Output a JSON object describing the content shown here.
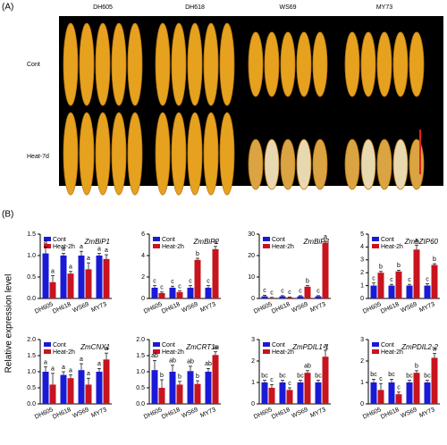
{
  "figure": {
    "label_a": "(A)",
    "label_b": "(B)",
    "y_axis_label": "Relative expression level"
  },
  "panel_a": {
    "columns": [
      "DH605",
      "DH618",
      "WS69",
      "MY73"
    ],
    "rows": [
      "Cont",
      "Heat-7d"
    ]
  },
  "chart_data": [
    {
      "type": "bar",
      "title": "ZmBiP1",
      "categories": [
        "DH605",
        "DH618",
        "WS69",
        "MY73"
      ],
      "ylim": [
        0,
        1.5
      ],
      "yticks": [
        {
          "value": 0,
          "label": "0.0"
        },
        0.5,
        {
          "value": 1,
          "label": "1.0"
        },
        1.5
      ],
      "series": [
        {
          "name": "Cont",
          "color": "#1a1ad6",
          "values": [
            1.05,
            1.0,
            1.0,
            1.0
          ],
          "errors": [
            0.15,
            0.05,
            0.1,
            0.05
          ],
          "annotations": [
            "a",
            "a",
            "a",
            "a"
          ]
        },
        {
          "name": "Heat-2h",
          "color": "#c8141e",
          "values": [
            0.38,
            0.58,
            0.68,
            0.92
          ],
          "errors": [
            0.15,
            0.05,
            0.15,
            0.1
          ],
          "annotations": [
            "a",
            "a",
            "a",
            "a"
          ]
        }
      ]
    },
    {
      "type": "bar",
      "title": "ZmBiP2",
      "categories": [
        "DH605",
        "DH618",
        "WS69",
        "MY73"
      ],
      "ylim": [
        0,
        6
      ],
      "yticks": [
        0,
        2,
        4,
        6
      ],
      "series": [
        {
          "name": "Cont",
          "color": "#1a1ad6",
          "values": [
            1.0,
            1.0,
            1.0,
            1.0
          ],
          "errors": [
            0.2,
            0.15,
            0.2,
            0.2
          ],
          "annotations": [
            "c",
            "c",
            "c",
            "c"
          ]
        },
        {
          "name": "Heat-2h",
          "color": "#c8141e",
          "values": [
            0.5,
            0.6,
            3.6,
            4.6
          ],
          "errors": [
            0.1,
            0.1,
            0.15,
            0.25
          ],
          "annotations": [
            "c",
            "c",
            "b",
            "a"
          ]
        }
      ]
    },
    {
      "type": "bar",
      "title": "ZmBiP3",
      "categories": [
        "DH605",
        "DH618",
        "WS69",
        "MY73"
      ],
      "ylim": [
        0,
        30
      ],
      "yticks": [
        0,
        10,
        20,
        30
      ],
      "series": [
        {
          "name": "Cont",
          "color": "#1a1ad6",
          "values": [
            1.0,
            1.0,
            1.0,
            1.0
          ],
          "errors": [
            0.5,
            0.3,
            0.3,
            0.3
          ],
          "annotations": [
            "c",
            "c",
            "c",
            "c"
          ]
        },
        {
          "name": "Heat-2h",
          "color": "#c8141e",
          "values": [
            0.3,
            0.5,
            5.5,
            26
          ],
          "errors": [
            0.2,
            0.2,
            0.5,
            0.6
          ],
          "annotations": [
            "c",
            "c",
            "b",
            "a"
          ]
        }
      ]
    },
    {
      "type": "bar",
      "title": "ZmbZIP60",
      "categories": [
        "DH605",
        "DH618",
        "WS69",
        "MY73"
      ],
      "ylim": [
        0,
        5
      ],
      "yticks": [
        0,
        1,
        2,
        3,
        4,
        5
      ],
      "series": [
        {
          "name": "Cont",
          "color": "#1a1ad6",
          "values": [
            1.0,
            1.0,
            1.0,
            1.0
          ],
          "errors": [
            0.2,
            0.1,
            0.1,
            0.15
          ],
          "annotations": [
            "c",
            "c",
            "c",
            "c"
          ]
        },
        {
          "name": "Heat-2h",
          "color": "#c8141e",
          "values": [
            2.0,
            2.1,
            3.8,
            2.6
          ],
          "errors": [
            0.1,
            0.1,
            0.35,
            0.1
          ],
          "annotations": [
            "b",
            "b",
            "a",
            "b"
          ]
        }
      ]
    },
    {
      "type": "bar",
      "title": "ZmCNX1",
      "categories": [
        "DH605",
        "DH618",
        "WS69",
        "MY73"
      ],
      "ylim": [
        0,
        2
      ],
      "yticks": [
        {
          "value": 0,
          "label": "0.0"
        },
        0.5,
        {
          "value": 1,
          "label": "1.0"
        },
        1.5,
        {
          "value": 2,
          "label": "2.0"
        }
      ],
      "series": [
        {
          "name": "Cont",
          "color": "#1a1ad6",
          "values": [
            1.0,
            0.9,
            1.05,
            1.0
          ],
          "errors": [
            0.15,
            0.1,
            0.2,
            0.1
          ],
          "annotations": [
            "a",
            "a",
            "a",
            "a"
          ]
        },
        {
          "name": "Heat-2h",
          "color": "#c8141e",
          "values": [
            0.6,
            0.8,
            0.6,
            1.38
          ],
          "errors": [
            0.35,
            0.1,
            0.2,
            0.2
          ],
          "annotations": [
            "a",
            "a",
            "a",
            "a"
          ]
        }
      ]
    },
    {
      "type": "bar",
      "title": "ZmCRT1a",
      "categories": [
        "DH605",
        "DH618",
        "WS69",
        "MY73"
      ],
      "ylim": [
        0,
        2
      ],
      "yticks": [
        {
          "value": 0,
          "label": "0.0"
        },
        0.5,
        {
          "value": 1,
          "label": "1.0"
        },
        1.5,
        {
          "value": 2,
          "label": "2.0"
        }
      ],
      "series": [
        {
          "name": "Cont",
          "color": "#1a1ad6",
          "values": [
            1.05,
            1.0,
            1.02,
            1.0
          ],
          "errors": [
            0.3,
            0.2,
            0.15,
            0.1
          ],
          "annotations": [
            "ab",
            "ab",
            "ab",
            "ab"
          ]
        },
        {
          "name": "Heat-2h",
          "color": "#c8141e",
          "values": [
            0.5,
            0.6,
            0.62,
            1.52
          ],
          "errors": [
            0.25,
            0.1,
            0.1,
            0.1
          ],
          "annotations": [
            "b",
            "b",
            "b",
            "a"
          ]
        }
      ]
    },
    {
      "type": "bar",
      "title": "ZmPDIL1-1",
      "categories": [
        "DH605",
        "DH618",
        "WS69",
        "MY73"
      ],
      "ylim": [
        0,
        3
      ],
      "yticks": [
        0,
        1,
        2,
        3
      ],
      "series": [
        {
          "name": "Cont",
          "color": "#1a1ad6",
          "values": [
            1.0,
            1.0,
            1.0,
            1.0
          ],
          "errors": [
            0.1,
            0.1,
            0.1,
            0.1
          ],
          "annotations": [
            "bc",
            "bc",
            "bc",
            "bc"
          ]
        },
        {
          "name": "Heat-2h",
          "color": "#c8141e",
          "values": [
            0.75,
            0.65,
            1.45,
            2.2
          ],
          "errors": [
            0.15,
            0.1,
            0.1,
            0.3
          ],
          "annotations": [
            "c",
            "c",
            "ab",
            "a"
          ]
        }
      ]
    },
    {
      "type": "bar",
      "title": "ZmPDIL2-2",
      "categories": [
        "DH605",
        "DH618",
        "WS69",
        "MY73"
      ],
      "ylim": [
        0,
        3
      ],
      "yticks": [
        0,
        1,
        2,
        3
      ],
      "series": [
        {
          "name": "Cont",
          "color": "#1a1ad6",
          "values": [
            1.0,
            1.0,
            1.0,
            1.0
          ],
          "errors": [
            0.15,
            0.15,
            0.1,
            0.1
          ],
          "annotations": [
            "bc",
            "bc",
            "bc",
            "bc"
          ]
        },
        {
          "name": "Heat-2h",
          "color": "#c8141e",
          "values": [
            0.65,
            0.45,
            1.45,
            2.15
          ],
          "errors": [
            0.3,
            0.1,
            0.1,
            0.2
          ],
          "annotations": [
            "c",
            "c",
            "b",
            "a"
          ]
        }
      ]
    }
  ]
}
